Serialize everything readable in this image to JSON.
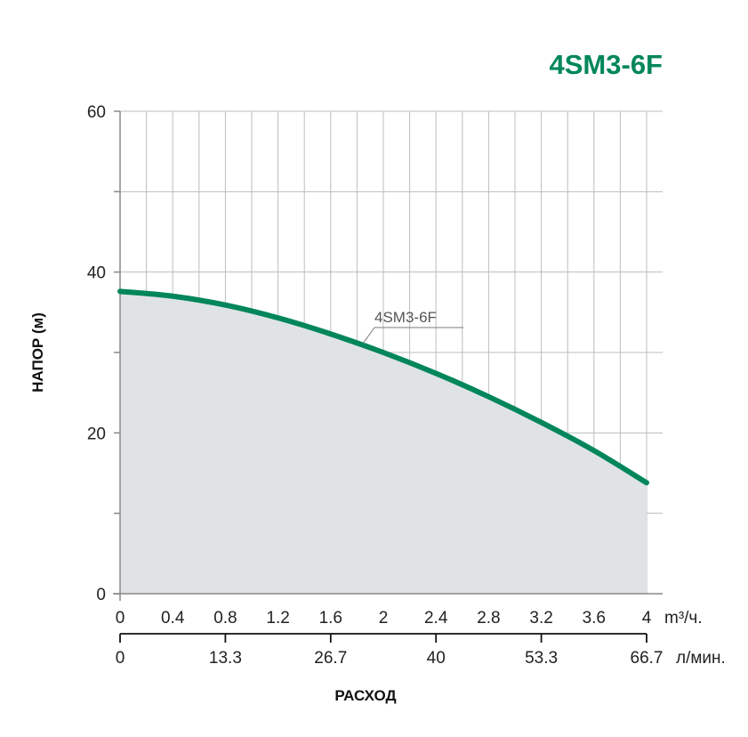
{
  "chart_data": {
    "type": "line",
    "title": "4SM3-6F",
    "ylabel": "НАПОР (м)",
    "xlabel": "РАСХОД",
    "ylim": [
      0,
      60
    ],
    "y_ticks": [
      "0",
      "20",
      "40",
      "60"
    ],
    "xlim": [
      0,
      4
    ],
    "x_ticks": [
      "0",
      "0.4",
      "0.8",
      "1.2",
      "1.6",
      "2",
      "2.4",
      "2.8",
      "3.2",
      "3.6",
      "4"
    ],
    "x_unit": "m³/ч.",
    "x2_ticks": [
      "0",
      "13.3",
      "26.7",
      "40",
      "53.3",
      "66.7"
    ],
    "x2_unit": "л/мин.",
    "grid": true,
    "area_fill": true,
    "series": [
      {
        "name": "4SM3-6F",
        "x": [
          0,
          0.4,
          0.8,
          1.2,
          1.6,
          2.0,
          2.4,
          2.8,
          3.2,
          3.6,
          4.0
        ],
        "values": [
          37.6,
          37.0,
          35.9,
          34.3,
          32.3,
          30.0,
          27.4,
          24.5,
          21.3,
          17.8,
          13.8
        ]
      }
    ],
    "colors": {
      "series": "#00865a",
      "fill": "#dfe3e5",
      "grid": "#bdbdbd",
      "axis": "#888888",
      "title": "#00865a"
    }
  }
}
